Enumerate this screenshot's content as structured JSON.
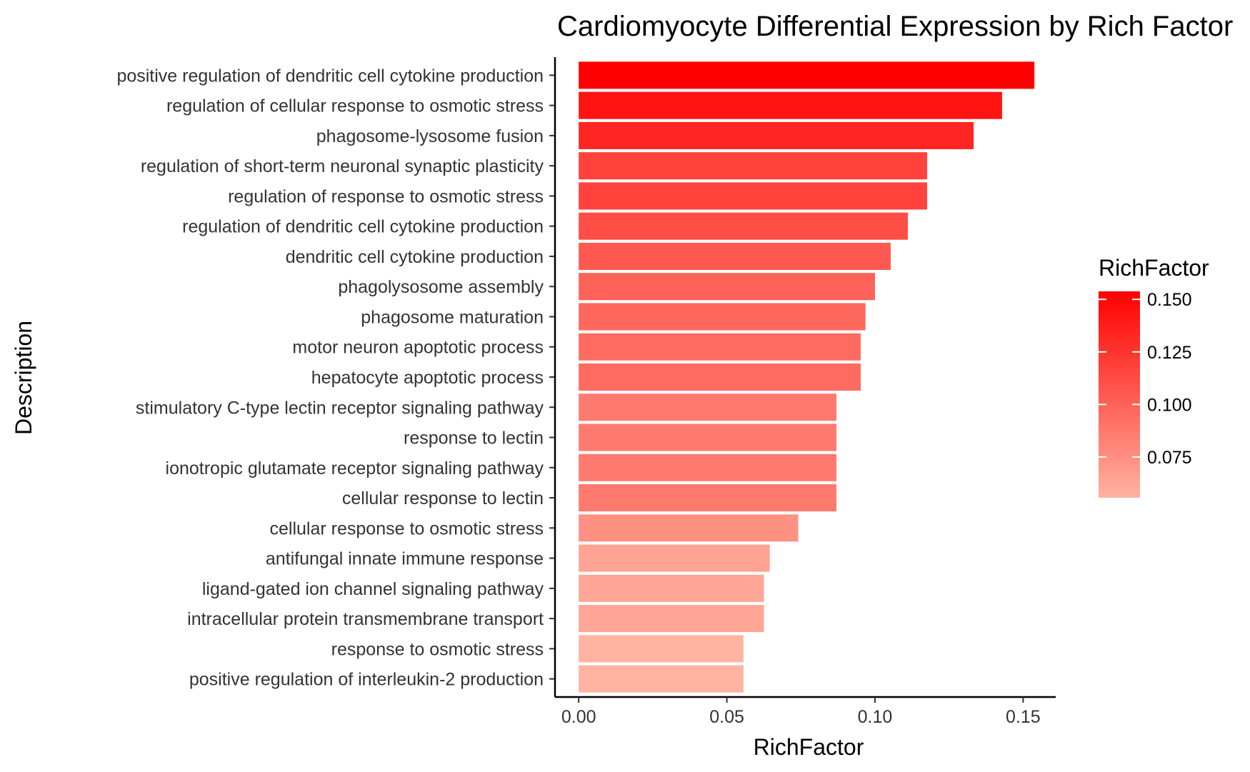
{
  "chart_data": {
    "type": "bar",
    "orientation": "horizontal",
    "title": "Cardiomyocyte Differential Expression by Rich Factor",
    "xlabel": "RichFactor",
    "ylabel": "Description",
    "xlim": [
      -0.008,
      0.161
    ],
    "xticks": [
      0.0,
      0.05,
      0.1,
      0.15
    ],
    "xtick_labels": [
      "0.00",
      "0.05",
      "0.10",
      "0.15"
    ],
    "grid": false,
    "categories": [
      "positive regulation of dendritic cell cytokine production",
      "regulation of cellular response to osmotic stress",
      "phagosome-lysosome fusion",
      "regulation of short-term neuronal synaptic plasticity",
      "regulation of response to osmotic stress",
      "regulation of dendritic cell cytokine production",
      "dendritic cell cytokine production",
      "phagolysosome assembly",
      "phagosome maturation",
      "motor neuron apoptotic process",
      "hepatocyte apoptotic process",
      "stimulatory C-type lectin receptor signaling pathway",
      "response to lectin",
      "ionotropic glutamate receptor signaling pathway",
      "cellular response to lectin",
      "cellular response to osmotic stress",
      "antifungal innate immune response",
      "ligand-gated ion channel signaling pathway",
      "intracellular protein transmembrane transport",
      "response to osmotic stress",
      "positive regulation of interleukin-2 production"
    ],
    "values": [
      0.1538,
      0.1429,
      0.1333,
      0.1176,
      0.1176,
      0.1111,
      0.1053,
      0.1,
      0.0968,
      0.0952,
      0.0952,
      0.087,
      0.087,
      0.087,
      0.087,
      0.0741,
      0.0645,
      0.0625,
      0.0625,
      0.0556,
      0.0556
    ],
    "legend": {
      "title": "RichFactor",
      "placement": "right",
      "type": "gradient",
      "min": 0.0556,
      "max": 0.1538,
      "low_color": "#FFB3A1",
      "high_color": "#FF0000",
      "ticks": [
        0.075,
        0.1,
        0.125,
        0.15
      ],
      "tick_labels": [
        "0.075",
        "0.100",
        "0.125",
        "0.150"
      ]
    }
  }
}
